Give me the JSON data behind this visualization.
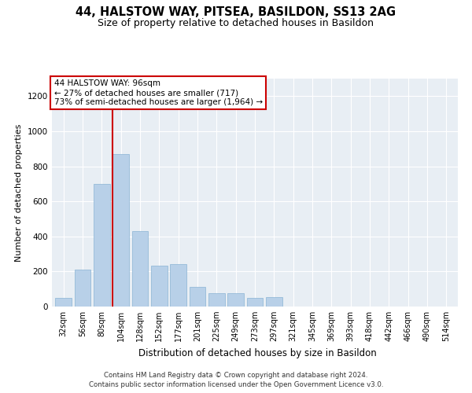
{
  "title_line1": "44, HALSTOW WAY, PITSEA, BASILDON, SS13 2AG",
  "title_line2": "Size of property relative to detached houses in Basildon",
  "xlabel": "Distribution of detached houses by size in Basildon",
  "ylabel": "Number of detached properties",
  "categories": [
    "32sqm",
    "56sqm",
    "80sqm",
    "104sqm",
    "128sqm",
    "152sqm",
    "177sqm",
    "201sqm",
    "225sqm",
    "249sqm",
    "273sqm",
    "297sqm",
    "321sqm",
    "345sqm",
    "369sqm",
    "393sqm",
    "418sqm",
    "442sqm",
    "466sqm",
    "490sqm",
    "514sqm"
  ],
  "values": [
    50,
    210,
    700,
    870,
    430,
    235,
    240,
    110,
    75,
    75,
    50,
    55,
    0,
    0,
    0,
    0,
    0,
    0,
    0,
    0,
    0
  ],
  "bar_color": "#b8d0e8",
  "bar_edge_color": "#8ab4d4",
  "vline_color": "#cc0000",
  "annotation_text": "44 HALSTOW WAY: 96sqm\n← 27% of detached houses are smaller (717)\n73% of semi-detached houses are larger (1,964) →",
  "annotation_box_color": "#ffffff",
  "annotation_box_edge_color": "#cc0000",
  "ylim": [
    0,
    1300
  ],
  "yticks": [
    0,
    200,
    400,
    600,
    800,
    1000,
    1200
  ],
  "plot_bg_color": "#e8eef4",
  "footer_line1": "Contains HM Land Registry data © Crown copyright and database right 2024.",
  "footer_line2": "Contains public sector information licensed under the Open Government Licence v3.0."
}
